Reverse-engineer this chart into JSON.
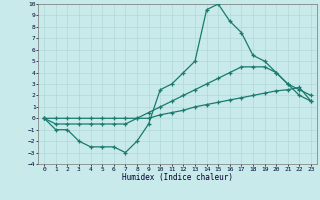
{
  "xlabel": "Humidex (Indice chaleur)",
  "bg_color": "#c8eaea",
  "grid_color": "#b0d8d8",
  "line_color": "#1a7a6e",
  "xlim": [
    -0.5,
    23.5
  ],
  "ylim": [
    -4,
    10
  ],
  "xticks": [
    0,
    1,
    2,
    3,
    4,
    5,
    6,
    7,
    8,
    9,
    10,
    11,
    12,
    13,
    14,
    15,
    16,
    17,
    18,
    19,
    20,
    21,
    22,
    23
  ],
  "yticks": [
    -4,
    -3,
    -2,
    -1,
    0,
    1,
    2,
    3,
    4,
    5,
    6,
    7,
    8,
    9,
    10
  ],
  "line1_x": [
    0,
    1,
    2,
    3,
    4,
    5,
    6,
    7,
    8,
    9,
    10,
    11,
    12,
    13,
    14,
    15,
    16,
    17,
    18,
    19,
    20,
    21,
    22,
    23
  ],
  "line1_y": [
    0,
    -1,
    -1,
    -2,
    -2.5,
    -2.5,
    -2.5,
    -3,
    -2,
    -0.5,
    2.5,
    3,
    4,
    5,
    9.5,
    10,
    8.5,
    7.5,
    5.5,
    5,
    4,
    3,
    2,
    1.5
  ],
  "line2_x": [
    0,
    1,
    2,
    3,
    4,
    5,
    6,
    7,
    8,
    9,
    10,
    11,
    12,
    13,
    14,
    15,
    16,
    17,
    18,
    19,
    20,
    21,
    22,
    23
  ],
  "line2_y": [
    0,
    -0.5,
    -0.5,
    -0.5,
    -0.5,
    -0.5,
    -0.5,
    -0.5,
    0,
    0.5,
    1,
    1.5,
    2,
    2.5,
    3,
    3.5,
    4,
    4.5,
    4.5,
    4.5,
    4,
    3,
    2.5,
    2
  ],
  "line3_x": [
    0,
    1,
    2,
    3,
    4,
    5,
    6,
    7,
    8,
    9,
    10,
    11,
    12,
    13,
    14,
    15,
    16,
    17,
    18,
    19,
    20,
    21,
    22,
    23
  ],
  "line3_y": [
    0,
    0,
    0,
    0,
    0,
    0,
    0,
    0,
    0,
    0,
    0.3,
    0.5,
    0.7,
    1,
    1.2,
    1.4,
    1.6,
    1.8,
    2,
    2.2,
    2.4,
    2.5,
    2.7,
    1.5
  ]
}
